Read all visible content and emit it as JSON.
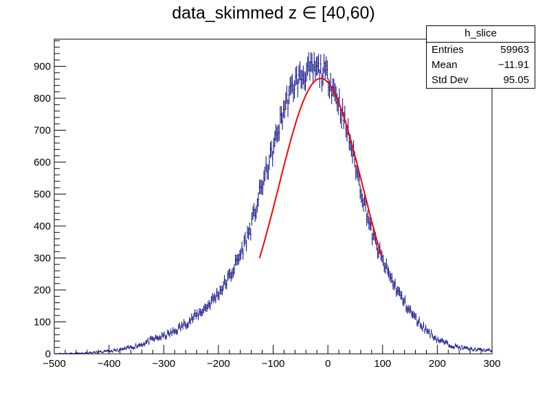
{
  "chart_data": {
    "type": "histogram",
    "title": "data_skimmed z  ∈ [40,60)",
    "xlim": [
      -500,
      300
    ],
    "ylim": [
      0,
      985
    ],
    "xticks": [
      -500,
      -400,
      -300,
      -200,
      -100,
      0,
      100,
      200,
      300
    ],
    "yticks": [
      0,
      100,
      200,
      300,
      400,
      500,
      600,
      700,
      800,
      900
    ],
    "series": [
      {
        "kind": "histogram-errorbars",
        "color": "#000080",
        "x": [
          -500,
          -480,
          -460,
          -440,
          -420,
          -400,
          -380,
          -360,
          -340,
          -320,
          -300,
          -280,
          -260,
          -240,
          -220,
          -200,
          -180,
          -160,
          -140,
          -120,
          -100,
          -80,
          -60,
          -40,
          -20,
          0,
          20,
          40,
          60,
          80,
          100,
          120,
          140,
          160,
          180,
          200,
          220,
          240,
          260,
          280,
          300
        ],
        "values": [
          1,
          1,
          2,
          3,
          5,
          8,
          12,
          20,
          30,
          45,
          55,
          70,
          95,
          120,
          150,
          190,
          240,
          310,
          400,
          530,
          640,
          770,
          850,
          880,
          890,
          870,
          790,
          670,
          520,
          380,
          290,
          220,
          160,
          110,
          75,
          45,
          30,
          20,
          15,
          12,
          10
        ]
      },
      {
        "kind": "fit",
        "color": "#ff0000",
        "function": "gaus",
        "constant": 862,
        "mean": -13,
        "sigma": 77,
        "range": [
          -125,
          98
        ]
      }
    ]
  },
  "stats_box": {
    "name": "h_slice",
    "rows": [
      {
        "label": "Entries",
        "value": "59963"
      },
      {
        "label": "Mean",
        "value": "−11.91"
      },
      {
        "label": "Std Dev",
        "value": "95.05"
      }
    ]
  }
}
